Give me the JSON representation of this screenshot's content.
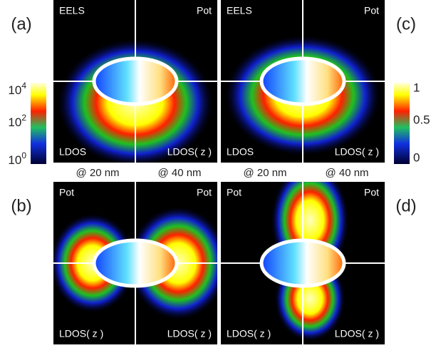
{
  "panels": [
    {
      "label": "(a)",
      "corners": [
        "EELS",
        "Pot",
        "LDOS",
        "LDOS( z )"
      ]
    },
    {
      "label": "(b)",
      "corners": [
        "Pot",
        "Pot",
        "LDOS( z )",
        "LDOS( z )"
      ]
    },
    {
      "label": "(c)",
      "corners": [
        "EELS",
        "Pot",
        "LDOS",
        "LDOS( z )"
      ]
    },
    {
      "label": "(d)",
      "corners": [
        "Pot",
        "Pot",
        "LDOS( z )",
        "LDOS( z )"
      ]
    }
  ],
  "left_colorbar": {
    "ticks": [
      {
        "base": "10",
        "exp": "4"
      },
      {
        "base": "10",
        "exp": "2"
      },
      {
        "base": "10",
        "exp": "0"
      }
    ]
  },
  "right_colorbar": {
    "ticks": [
      "1",
      "0.5",
      "0"
    ]
  },
  "distance_labels": [
    "@ 20 nm",
    "@ 40 nm",
    "@ 20 nm",
    "@ 40 nm"
  ]
}
